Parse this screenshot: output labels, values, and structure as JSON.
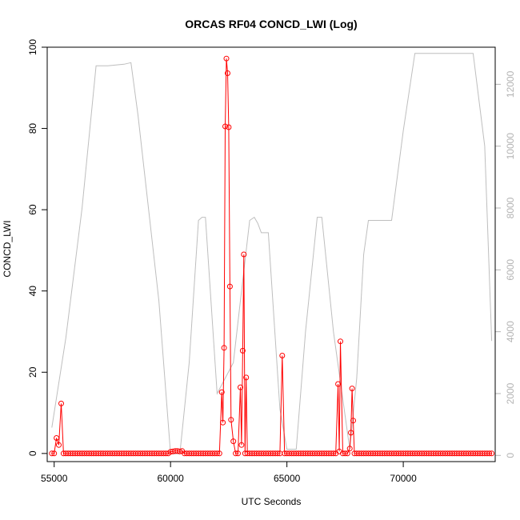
{
  "chart_data": {
    "type": "line",
    "title": "ORCAS RF04 CONCD_LWI (Log)",
    "xlabel": "UTC Seconds",
    "ylabel": "CONCD_LWI",
    "xlim": [
      54700,
      73950
    ],
    "ylim": [
      -2,
      100
    ],
    "y2lim": [
      -200,
      13200
    ],
    "x_ticks": [
      55000,
      60000,
      65000,
      70000
    ],
    "y_ticks": [
      0,
      20,
      40,
      60,
      80,
      100
    ],
    "y2_ticks": [
      0,
      2000,
      4000,
      6000,
      8000,
      10000,
      12000
    ],
    "grid": false,
    "colors": {
      "series": "#ff0000",
      "altitude": "#bebebe",
      "axes": "#000000",
      "right_axis": "#b3b3b3"
    },
    "series": [
      {
        "color": "#ff0000",
        "axis": "left",
        "marker": "open-circle",
        "sample_interval": 100,
        "x_start": 54900,
        "x_end": 73800,
        "background_value": 0,
        "spikes": [
          {
            "x": 55100,
            "y": 3.8
          },
          {
            "x": 55200,
            "y": 2.1
          },
          {
            "x": 55300,
            "y": 12.3
          },
          {
            "x": 60000,
            "y": 0.4
          },
          {
            "x": 60100,
            "y": 0.5
          },
          {
            "x": 60200,
            "y": 0.6
          },
          {
            "x": 60300,
            "y": 0.6
          },
          {
            "x": 60400,
            "y": 0.5
          },
          {
            "x": 60500,
            "y": 0.6
          },
          {
            "x": 62200,
            "y": 15.1
          },
          {
            "x": 62250,
            "y": 7.6
          },
          {
            "x": 62300,
            "y": 26.0
          },
          {
            "x": 62350,
            "y": 80.5
          },
          {
            "x": 62400,
            "y": 97.2
          },
          {
            "x": 62450,
            "y": 93.6
          },
          {
            "x": 62500,
            "y": 80.3
          },
          {
            "x": 62550,
            "y": 41.1
          },
          {
            "x": 62600,
            "y": 8.3
          },
          {
            "x": 62700,
            "y": 3.0
          },
          {
            "x": 63000,
            "y": 16.3
          },
          {
            "x": 63050,
            "y": 2.1
          },
          {
            "x": 63100,
            "y": 25.3
          },
          {
            "x": 63150,
            "y": 49.0
          },
          {
            "x": 63250,
            "y": 18.7
          },
          {
            "x": 64800,
            "y": 24.1
          },
          {
            "x": 67200,
            "y": 17.1
          },
          {
            "x": 67250,
            "y": 0.5
          },
          {
            "x": 67300,
            "y": 27.6
          },
          {
            "x": 67700,
            "y": 1.2
          },
          {
            "x": 67750,
            "y": 5.1
          },
          {
            "x": 67800,
            "y": 16.0
          },
          {
            "x": 67850,
            "y": 8.1
          }
        ]
      },
      {
        "color": "#bebebe",
        "axis": "right",
        "marker": "none",
        "x": [
          54900,
          55500,
          56200,
          56800,
          57300,
          58000,
          58300,
          58600,
          59500,
          60000,
          60400,
          60800,
          61200,
          61350,
          61500,
          62000,
          62700,
          63000,
          63400,
          63600,
          63750,
          63900,
          64200,
          64700,
          65000,
          65400,
          65800,
          66300,
          66500,
          67000,
          67700,
          68000,
          68300,
          68500,
          68700,
          69500,
          70000,
          70500,
          71000,
          71500,
          72000,
          72800,
          73000,
          73500,
          73800
        ],
        "values": [
          900,
          3800,
          8000,
          12600,
          12600,
          12650,
          12700,
          11000,
          5000,
          50,
          50,
          3000,
          7600,
          7700,
          7700,
          2000,
          3000,
          5000,
          7600,
          7700,
          7500,
          7200,
          7200,
          1500,
          200,
          200,
          4000,
          7700,
          7700,
          4000,
          200,
          2500,
          6500,
          7600,
          7600,
          7600,
          10500,
          13000,
          13000,
          13000,
          13000,
          13000,
          13000,
          10000,
          3700
        ]
      }
    ]
  }
}
